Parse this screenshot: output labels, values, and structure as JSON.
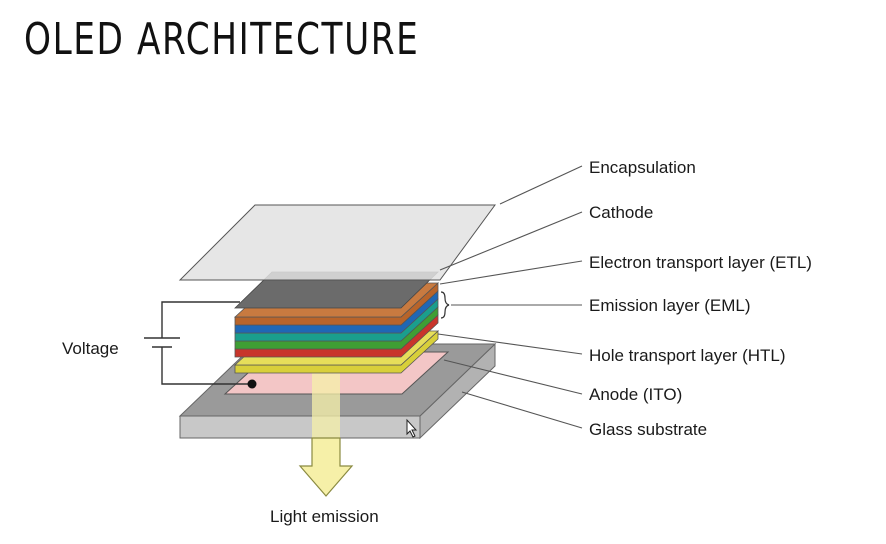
{
  "title": "OLED ARCHITECTURE",
  "labels": {
    "encapsulation": "Encapsulation",
    "cathode": "Cathode",
    "etl": "Electron transport layer (ETL)",
    "eml": "Emission layer (EML)",
    "htl": "Hole transport layer (HTL)",
    "anode": "Anode (ITO)",
    "glass": "Glass substrate",
    "voltage": "Voltage",
    "light": "Light emission"
  },
  "colors": {
    "encapsulation": "#e2e2e2",
    "cathode": "#6b6b6b",
    "etl": "#b8642a",
    "emission_blue": "#1f67b5",
    "emission_teal": "#1a9e8d",
    "emission_green": "#3f9e34",
    "emission_red": "#c8352b",
    "htl": "#d8cf3a",
    "anode": "#f3c6c6",
    "glass_top": "#9a9a9a",
    "glass_side": "#c8c8c8",
    "arrow": "#f6f0a8"
  }
}
